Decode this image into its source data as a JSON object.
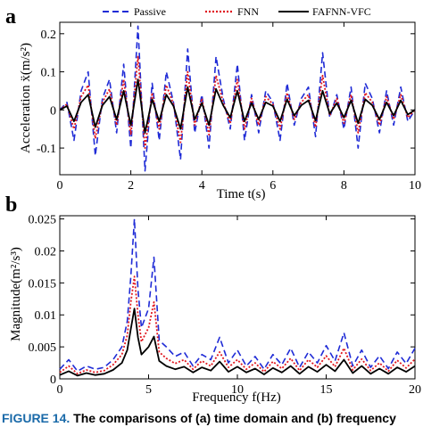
{
  "colors": {
    "passive": "#1f2bd6",
    "fnn": "#e0181f",
    "fafnn": "#000000",
    "caption_label": "#1a6aa9"
  },
  "caption": {
    "figure_number": "FIGURE 14.",
    "text": "The comparisons of (a) time domain and (b) frequency"
  },
  "legend": {
    "placement": "top",
    "entries": [
      "Passive",
      "FNN",
      "FAFNN-VFC"
    ]
  },
  "chart_data": [
    {
      "type": "line",
      "panel_label": "a",
      "xlabel": "Time t(s)",
      "ylabel": "Acceleration ẍ(m/s²)",
      "xlim": [
        0,
        10
      ],
      "ylim": [
        -0.17,
        0.23
      ],
      "xticks": [
        "0",
        "2",
        "4",
        "6",
        "8",
        "10"
      ],
      "yticks": [
        "-0.1",
        "0",
        "0.1",
        "0.2"
      ],
      "ytick_values": [
        -0.1,
        0,
        0.1,
        0.2
      ],
      "xtick_values": [
        0,
        2,
        4,
        6,
        8,
        10
      ],
      "x": [
        0,
        0.2,
        0.4,
        0.6,
        0.8,
        1.0,
        1.2,
        1.4,
        1.6,
        1.8,
        2.0,
        2.2,
        2.4,
        2.6,
        2.8,
        3.0,
        3.2,
        3.4,
        3.6,
        3.8,
        4.0,
        4.2,
        4.4,
        4.6,
        4.8,
        5.0,
        5.2,
        5.4,
        5.6,
        5.8,
        6.0,
        6.2,
        6.4,
        6.6,
        6.8,
        7.0,
        7.2,
        7.4,
        7.6,
        7.8,
        8.0,
        8.2,
        8.4,
        8.6,
        8.8,
        9.0,
        9.2,
        9.4,
        9.6,
        9.8,
        10.0
      ],
      "series": [
        {
          "name": "Passive",
          "style": "dashed",
          "values": [
            0.0,
            0.02,
            -0.08,
            0.05,
            0.1,
            -0.12,
            0.03,
            0.08,
            -0.06,
            0.12,
            -0.1,
            0.22,
            -0.16,
            0.07,
            -0.08,
            0.1,
            0.02,
            -0.13,
            0.16,
            -0.06,
            0.04,
            -0.1,
            0.14,
            0.03,
            -0.05,
            0.12,
            -0.08,
            0.04,
            -0.06,
            0.05,
            0.02,
            -0.08,
            0.07,
            -0.04,
            0.03,
            0.06,
            -0.07,
            0.15,
            -0.02,
            0.04,
            -0.05,
            0.06,
            -0.1,
            0.07,
            0.03,
            -0.06,
            0.05,
            -0.04,
            0.06,
            -0.03,
            0.0
          ]
        },
        {
          "name": "FNN",
          "style": "dotted",
          "values": [
            0.0,
            0.015,
            -0.05,
            0.035,
            0.065,
            -0.075,
            0.02,
            0.055,
            -0.04,
            0.08,
            -0.065,
            0.14,
            -0.1,
            0.045,
            -0.05,
            0.065,
            0.015,
            -0.085,
            0.1,
            -0.04,
            0.03,
            -0.065,
            0.09,
            0.02,
            -0.035,
            0.08,
            -0.05,
            0.03,
            -0.04,
            0.035,
            0.015,
            -0.05,
            0.045,
            -0.025,
            0.02,
            0.04,
            -0.045,
            0.09,
            -0.015,
            0.03,
            -0.035,
            0.04,
            -0.06,
            0.045,
            0.02,
            -0.04,
            0.035,
            -0.025,
            0.04,
            -0.02,
            0.0
          ]
        },
        {
          "name": "FAFNN-VFC",
          "style": "solid",
          "values": [
            0.0,
            0.01,
            -0.03,
            0.02,
            0.04,
            -0.045,
            0.012,
            0.035,
            -0.025,
            0.05,
            -0.04,
            0.08,
            -0.06,
            0.028,
            -0.03,
            0.04,
            0.01,
            -0.05,
            0.06,
            -0.025,
            0.018,
            -0.04,
            0.055,
            0.012,
            -0.02,
            0.05,
            -0.03,
            0.018,
            -0.025,
            0.02,
            0.01,
            -0.03,
            0.028,
            -0.015,
            0.012,
            0.025,
            -0.028,
            0.05,
            -0.01,
            0.018,
            -0.02,
            0.025,
            -0.035,
            0.028,
            0.012,
            -0.025,
            0.02,
            -0.015,
            0.025,
            -0.012,
            0.0
          ]
        }
      ]
    },
    {
      "type": "line",
      "panel_label": "b",
      "xlabel": "Frequency f(Hz)",
      "ylabel": "Magnitude(m²/s³)",
      "xlim": [
        0,
        20
      ],
      "ylim": [
        0,
        0.0255
      ],
      "xticks": [
        "0",
        "5",
        "10",
        "15",
        "20"
      ],
      "yticks": [
        "0",
        "0.005",
        "0.01",
        "0.015",
        "0.02",
        "0.025"
      ],
      "ytick_values": [
        0,
        0.005,
        0.01,
        0.015,
        0.02,
        0.025
      ],
      "xtick_values": [
        0,
        5,
        10,
        15,
        20
      ],
      "x": [
        0,
        0.5,
        1.0,
        1.5,
        2.0,
        2.5,
        3.0,
        3.5,
        3.8,
        4.0,
        4.2,
        4.4,
        4.6,
        5.0,
        5.3,
        5.6,
        6.0,
        6.5,
        7.0,
        7.5,
        8.0,
        8.5,
        9.0,
        9.5,
        10.0,
        10.5,
        11.0,
        11.5,
        12.0,
        12.5,
        13.0,
        13.5,
        14.0,
        14.5,
        15.0,
        15.5,
        16.0,
        16.5,
        17.0,
        17.5,
        18.0,
        18.5,
        19.0,
        19.5,
        20.0
      ],
      "series": [
        {
          "name": "Passive",
          "style": "dashed",
          "values": [
            0.0015,
            0.003,
            0.0012,
            0.002,
            0.0015,
            0.0018,
            0.003,
            0.005,
            0.009,
            0.016,
            0.025,
            0.014,
            0.008,
            0.011,
            0.019,
            0.006,
            0.005,
            0.0035,
            0.0042,
            0.002,
            0.0038,
            0.003,
            0.0065,
            0.0025,
            0.0045,
            0.002,
            0.0035,
            0.0015,
            0.0038,
            0.0022,
            0.0048,
            0.0018,
            0.0042,
            0.0025,
            0.0052,
            0.0028,
            0.0072,
            0.002,
            0.0045,
            0.0018,
            0.0036,
            0.0016,
            0.0042,
            0.0024,
            0.0048
          ]
        },
        {
          "name": "FNN",
          "style": "dotted",
          "values": [
            0.001,
            0.002,
            0.0008,
            0.0014,
            0.001,
            0.0013,
            0.0022,
            0.0038,
            0.0068,
            0.012,
            0.016,
            0.01,
            0.0058,
            0.008,
            0.012,
            0.0042,
            0.0032,
            0.0024,
            0.003,
            0.0015,
            0.0028,
            0.002,
            0.0042,
            0.0018,
            0.003,
            0.0015,
            0.0025,
            0.0011,
            0.0027,
            0.0016,
            0.0032,
            0.0013,
            0.003,
            0.0018,
            0.0036,
            0.0019,
            0.0048,
            0.0014,
            0.0031,
            0.0013,
            0.0025,
            0.0012,
            0.0029,
            0.0017,
            0.0031
          ]
        },
        {
          "name": "FAFNN-VFC",
          "style": "solid",
          "values": [
            0.0006,
            0.0012,
            0.0005,
            0.0009,
            0.0006,
            0.0008,
            0.0014,
            0.0025,
            0.0045,
            0.0078,
            0.011,
            0.0065,
            0.0038,
            0.005,
            0.0066,
            0.0028,
            0.002,
            0.0015,
            0.0019,
            0.001,
            0.0018,
            0.0013,
            0.0027,
            0.0011,
            0.0019,
            0.001,
            0.0016,
            0.0007,
            0.0017,
            0.001,
            0.002,
            0.0008,
            0.0019,
            0.0011,
            0.0022,
            0.0012,
            0.003,
            0.0009,
            0.002,
            0.0008,
            0.0016,
            0.0008,
            0.0018,
            0.0011,
            0.002
          ]
        }
      ]
    }
  ]
}
